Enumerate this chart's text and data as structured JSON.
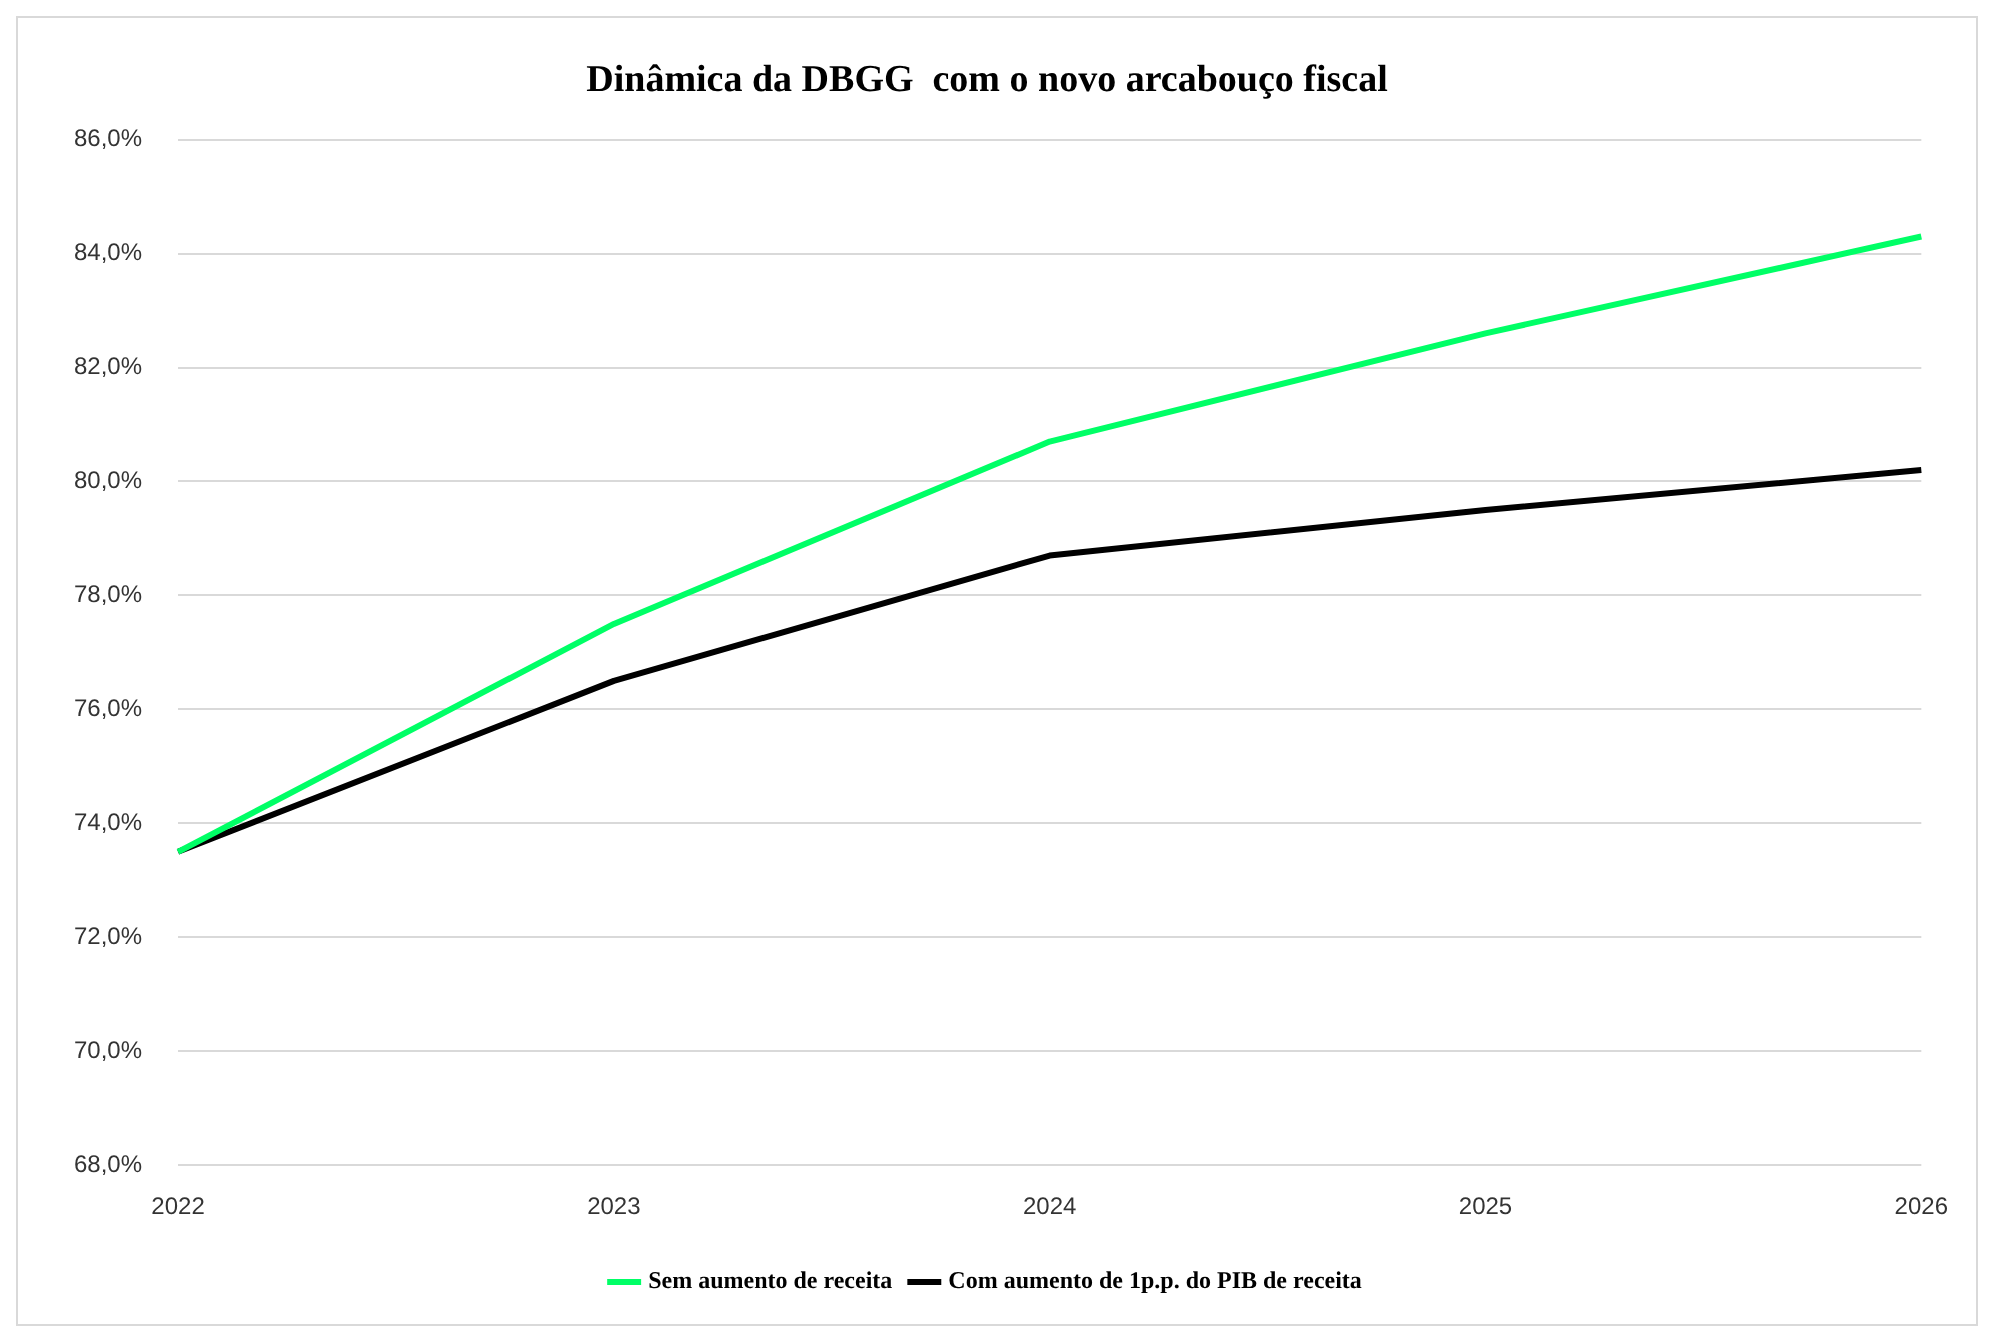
{
  "chart_data": {
    "type": "line",
    "title": "Dinâmica da DBGG  com o novo arcabouço fiscal",
    "categories": [
      "2022",
      "2023",
      "2024",
      "2025",
      "2026"
    ],
    "series": [
      {
        "name": "Sem aumento de receita",
        "color": "#00ff66",
        "values": [
          73.5,
          77.5,
          80.7,
          82.6,
          84.3
        ]
      },
      {
        "name": "Com aumento de 1p.p. do PIB de receita",
        "color": "#000000",
        "values": [
          73.5,
          76.5,
          78.7,
          79.5,
          80.2
        ]
      }
    ],
    "ylim": [
      68,
      86
    ],
    "yticks": [
      {
        "value": 68,
        "label": "68,0%"
      },
      {
        "value": 70,
        "label": "70,0%"
      },
      {
        "value": 72,
        "label": "72,0%"
      },
      {
        "value": 74,
        "label": "74,0%"
      },
      {
        "value": 76,
        "label": "76,0%"
      },
      {
        "value": 78,
        "label": "78,0%"
      },
      {
        "value": 80,
        "label": "80,0%"
      },
      {
        "value": 82,
        "label": "82,0%"
      },
      {
        "value": 84,
        "label": "84,0%"
      },
      {
        "value": 86,
        "label": "86,0%"
      }
    ],
    "grid": "y",
    "legend": "bottom",
    "marker": "none",
    "line_style": "solid"
  }
}
